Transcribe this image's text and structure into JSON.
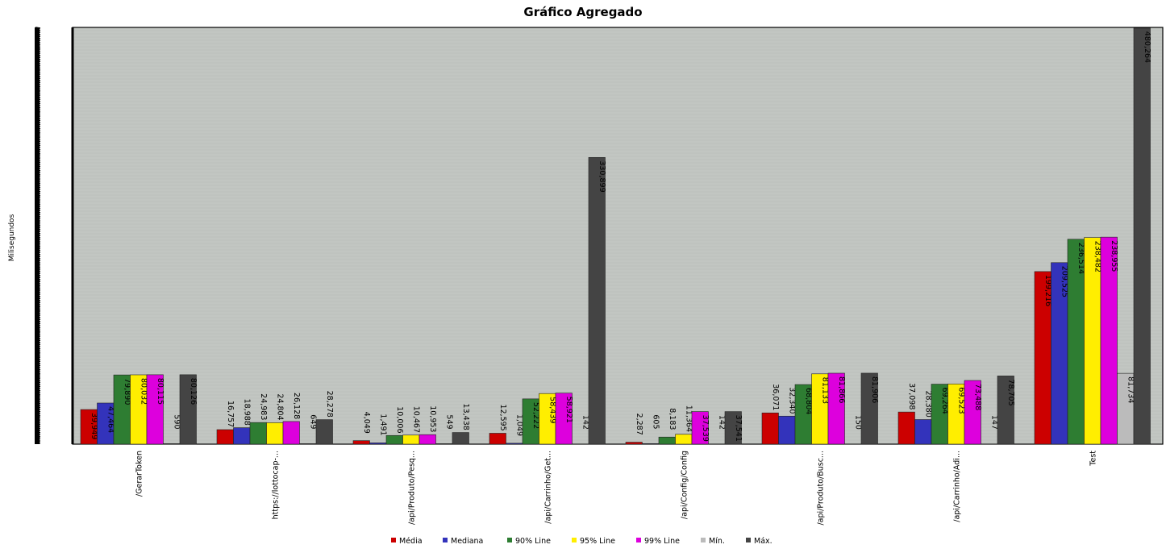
{
  "chart_data": {
    "type": "bar",
    "title": "Gráfico Agregado",
    "xlabel": "",
    "ylabel": "Milisegundos",
    "ylim": [
      0,
      481000
    ],
    "grid": true,
    "legend_position": "bottom",
    "categories": [
      "/GerarToken",
      "https://lottocap-...",
      "/api/Produto/Pesq...",
      "/api/Carrinho/Get...",
      "/api/Config/Config",
      "/api/Produto/Busc...",
      "/api/Carrinho/Adi...",
      "Test"
    ],
    "series": [
      {
        "name": "Média",
        "color": "#cc0000",
        "values": [
          39949,
          16757,
          4049,
          12595,
          2287,
          36071,
          37098,
          199216
        ]
      },
      {
        "name": "Mediana",
        "color": "#3333bb",
        "values": [
          47464,
          18988,
          1491,
          1049,
          605,
          32340,
          28380,
          209525
        ]
      },
      {
        "name": "90% Line",
        "color": "#2e7d32",
        "values": [
          79890,
          24983,
          10006,
          52222,
          8183,
          68804,
          69264,
          236514
        ]
      },
      {
        "name": "95% Line",
        "color": "#ffee00",
        "values": [
          80032,
          24804,
          10467,
          58439,
          11364,
          81133,
          69523,
          238482
        ]
      },
      {
        "name": "99% Line",
        "color": "#dd00dd",
        "values": [
          80115,
          26128,
          10953,
          58921,
          37539,
          81866,
          73488,
          238955
        ]
      },
      {
        "name": "Mín.",
        "color": "#bbbbbb",
        "values": [
          590,
          649,
          549,
          142,
          142,
          150,
          147,
          81734
        ]
      },
      {
        "name": "Máx.",
        "color": "#444444",
        "values": [
          80126,
          28278,
          13438,
          330899,
          37541,
          81906,
          78705,
          480264
        ]
      }
    ],
    "value_labels": [
      [
        "39,949",
        "47,464",
        "79,890",
        "80,032",
        "80,115",
        "590",
        "80,126"
      ],
      [
        "16,757",
        "18,988",
        "24,983",
        "24,804",
        "26,128",
        "649",
        "28,278"
      ],
      [
        "4,049",
        "1,491",
        "10,006",
        "10,467",
        "10,953",
        "549",
        "13,438"
      ],
      [
        "12,595",
        "1,049",
        "52,222",
        "58,439",
        "58,921",
        "142",
        "330,899"
      ],
      [
        "2,287",
        "605",
        "8,183",
        "11,364",
        "37,539",
        "142",
        "37,541"
      ],
      [
        "36,071",
        "32,340",
        "68,804",
        "81,133",
        "81,866",
        "150",
        "81,906"
      ],
      [
        "37,098",
        "28,380",
        "69,264",
        "69,523",
        "73,488",
        "147",
        "78,705"
      ],
      [
        "199,216",
        "209,525",
        "236,514",
        "238,482",
        "238,955",
        "81,734",
        "480,264"
      ]
    ],
    "plot_background": "#c2c6c2"
  }
}
